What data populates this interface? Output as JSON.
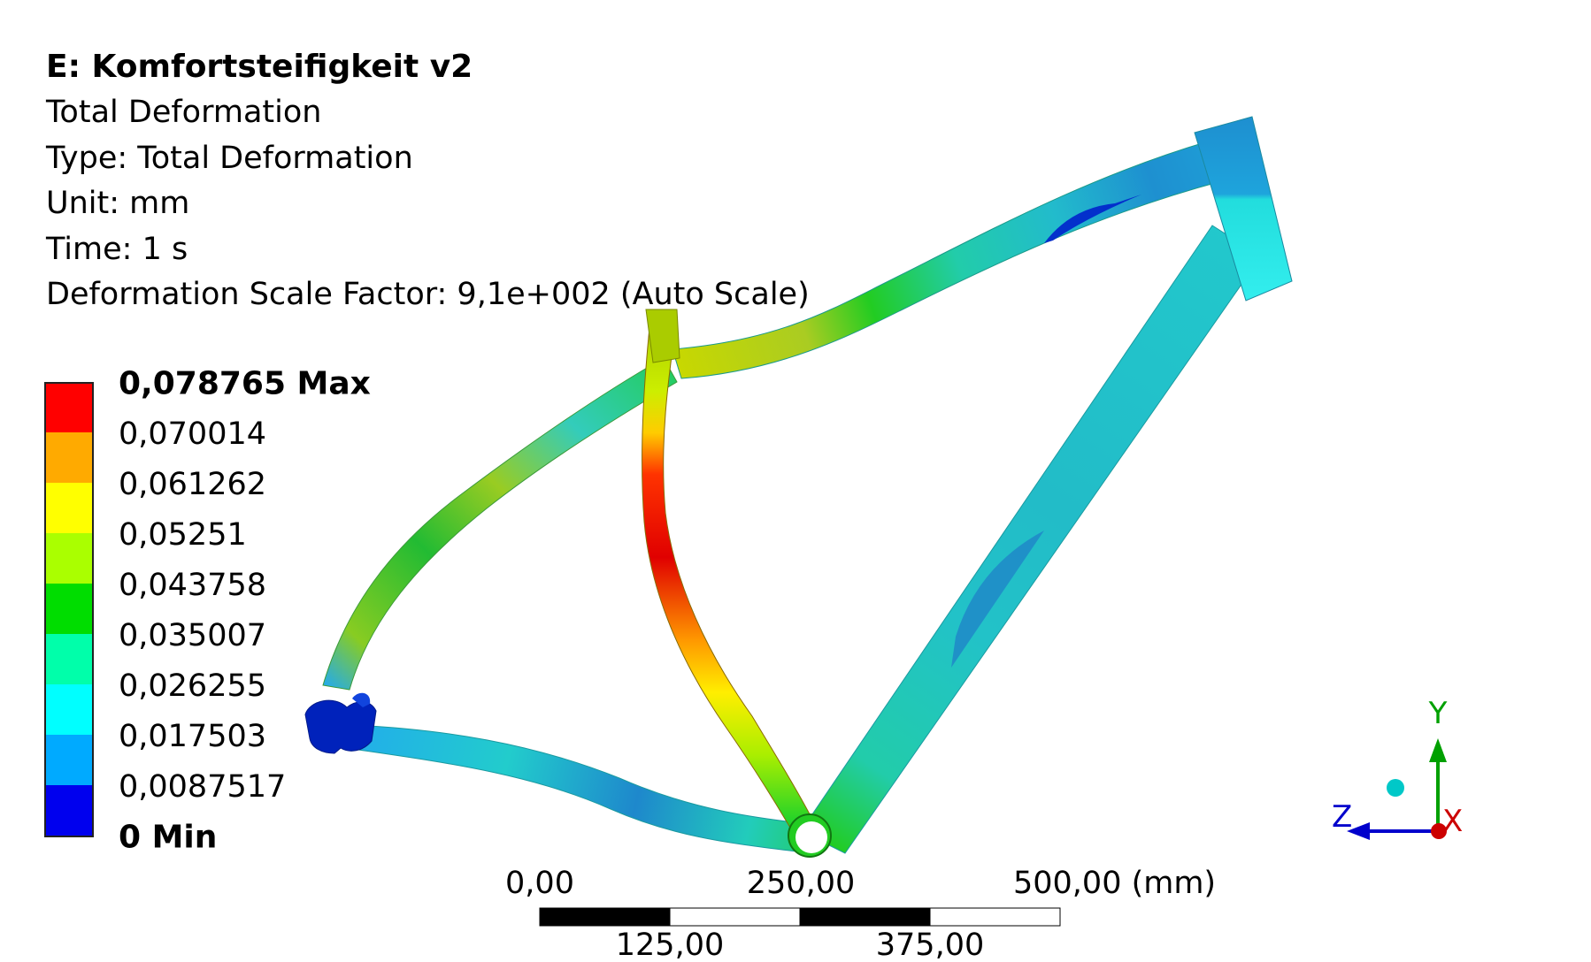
{
  "header": {
    "title": "E: Komfortsteifigkeit v2",
    "lines": [
      "Total Deformation",
      "Type: Total Deformation",
      "Unit: mm",
      "Time: 1 s",
      "Deformation Scale Factor: 9,1e+002 (Auto Scale)"
    ]
  },
  "legend": {
    "labels": [
      "0,078765 Max",
      "0,070014",
      "0,061262",
      "0,05251",
      "0,043758",
      "0,035007",
      "0,026255",
      "0,017503",
      "0,0087517",
      "0 Min"
    ],
    "colors": [
      "#ff0000",
      "#ffaa00",
      "#ffff00",
      "#aaff00",
      "#00dd00",
      "#00ffaa",
      "#00ffff",
      "#00aaff",
      "#0000ee"
    ]
  },
  "scale_bar": {
    "top_labels": [
      "0,00",
      "250,00",
      "500,00 (mm)"
    ],
    "bottom_labels": [
      "125,00",
      "375,00"
    ]
  },
  "triad": {
    "y": "Y",
    "z": "Z",
    "x": "X"
  },
  "colors": {
    "y_axis": "#00a000",
    "z_axis": "#0000cc",
    "x_axis": "#cc0000",
    "iso_ball": "#00c8c8"
  }
}
